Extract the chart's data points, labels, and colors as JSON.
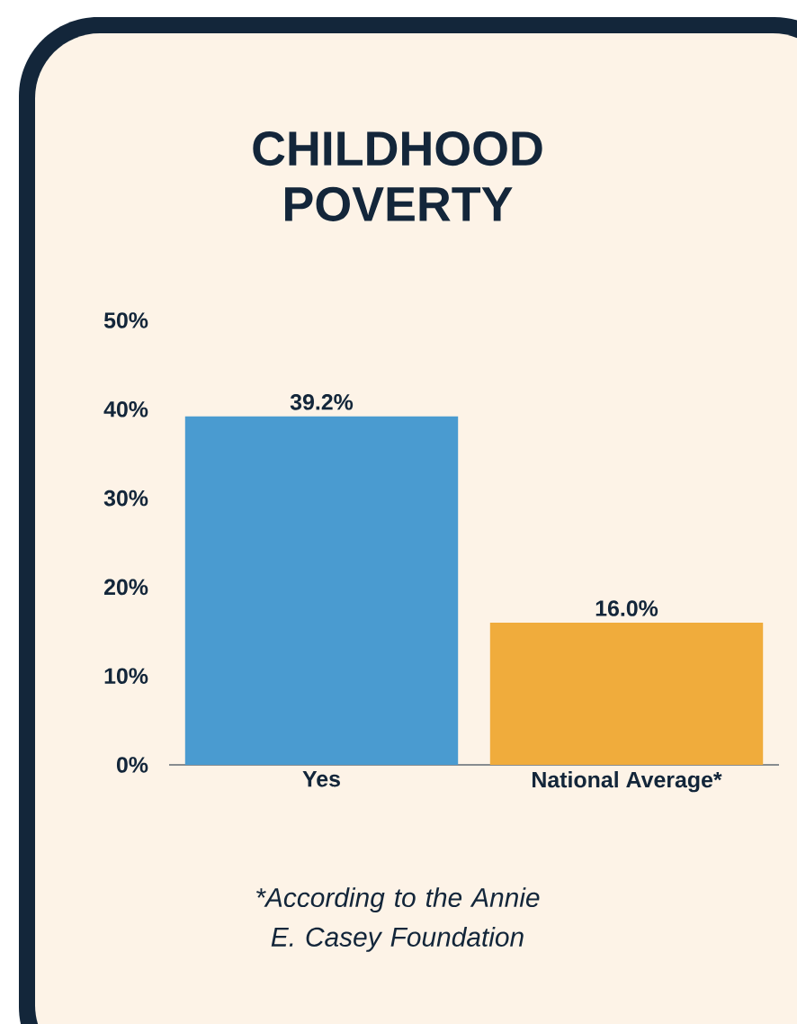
{
  "chart_data": {
    "type": "bar",
    "title": "CHILDHOOD POVERTY",
    "categories": [
      "Yes",
      "National Average*"
    ],
    "values": [
      39.2,
      16.0
    ],
    "colors": [
      "#4a9bd0",
      "#f0ac3c"
    ],
    "value_labels": [
      "39.2%",
      "16.0%"
    ],
    "ylim": [
      0,
      50
    ],
    "yticks": [
      {
        "value": 0,
        "label": "0%"
      },
      {
        "value": 10,
        "label": "10%"
      },
      {
        "value": 20,
        "label": "20%"
      },
      {
        "value": 30,
        "label": "30%"
      },
      {
        "value": 40,
        "label": "40%"
      },
      {
        "value": 50,
        "label": "50%"
      }
    ],
    "annotations": [
      "*According to the Annie E. Casey Foundation"
    ]
  }
}
